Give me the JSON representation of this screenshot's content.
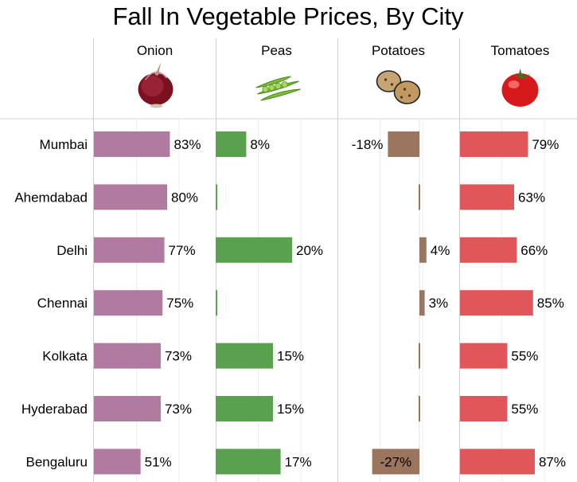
{
  "chart_data": {
    "type": "bar",
    "orientation": "horizontal",
    "title": "Fall In Vegetable Prices, By City",
    "categories": [
      "Mumbai",
      "Ahemdabad",
      "Delhi",
      "Chennai",
      "Kolkata",
      "Hyderabad",
      "Bengaluru"
    ],
    "series": [
      {
        "name": "Onion",
        "color": "#b07aa1",
        "icon": "onion-icon",
        "values": [
          83,
          80,
          77,
          75,
          73,
          73,
          51
        ],
        "labels": [
          "83%",
          "80%",
          "77%",
          "75%",
          "73%",
          "73%",
          "51%"
        ]
      },
      {
        "name": "Peas",
        "color": "#59a14f",
        "icon": "peas-icon",
        "values": [
          8,
          0,
          20,
          0,
          15,
          15,
          17
        ],
        "labels": [
          "8%",
          "",
          "20%",
          "",
          "15%",
          "15%",
          "17%"
        ]
      },
      {
        "name": "Potatoes",
        "color": "#9c755f",
        "icon": "potato-icon",
        "values": [
          -18,
          0,
          4,
          3,
          0,
          0,
          -27
        ],
        "labels": [
          "-18%",
          "",
          "4%",
          "3%",
          "",
          "",
          "-27%"
        ]
      },
      {
        "name": "Tomatoes",
        "color": "#e15759",
        "icon": "tomato-icon",
        "values": [
          79,
          63,
          66,
          85,
          55,
          55,
          87
        ],
        "labels": [
          "79%",
          "63%",
          "66%",
          "85%",
          "55%",
          "55%",
          "87%"
        ]
      }
    ],
    "grid": true,
    "legend": "none"
  }
}
